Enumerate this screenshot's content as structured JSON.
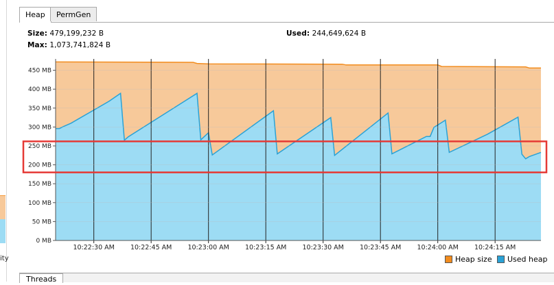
{
  "left_panel": {
    "clipped_text": "ity"
  },
  "tabs": [
    {
      "label": "Heap",
      "active": true
    },
    {
      "label": "PermGen",
      "active": false
    }
  ],
  "info": {
    "size_label": "Size:",
    "size_value": "479,199,232 B",
    "max_label": "Max:",
    "max_value": "1,073,741,824 B",
    "used_label": "Used:",
    "used_value": "244,649,624 B"
  },
  "legend": [
    {
      "label": "Heap size",
      "color": "#f28c1e"
    },
    {
      "label": "Used heap",
      "color": "#2aa2d6"
    }
  ],
  "colors": {
    "heap_fill": "#f7c99a",
    "heap_line": "#f28c1e",
    "used_fill": "#9ddcf4",
    "used_line": "#2aa2d6",
    "highlight": "#e53935",
    "grid": "#222222"
  },
  "bottom_tab": {
    "label": "Threads"
  },
  "chart_data": {
    "type": "area",
    "ylim": [
      0,
      480
    ],
    "y_unit": "MB",
    "y_ticks": [
      "0 MB",
      "50 MB",
      "100 MB",
      "150 MB",
      "200 MB",
      "250 MB",
      "300 MB",
      "350 MB",
      "400 MB",
      "450 MB"
    ],
    "y_tick_values": [
      0,
      50,
      100,
      150,
      200,
      250,
      300,
      350,
      400,
      450
    ],
    "x_ticks": [
      "10:22:30 AM",
      "10:22:45 AM",
      "10:23:00 AM",
      "10:23:15 AM",
      "10:23:30 AM",
      "10:23:45 AM",
      "10:24:00 AM",
      "10:24:15 AM"
    ],
    "x_tick_times": [
      "10:22:30",
      "10:22:45",
      "10:23:00",
      "10:23:15",
      "10:23:30",
      "10:23:45",
      "10:24:00",
      "10:24:15"
    ],
    "x_range": [
      "10:22:20",
      "10:24:27"
    ],
    "grid": true,
    "legend_position": "bottom-right",
    "highlight_band": [
      180,
      262
    ],
    "series": [
      {
        "name": "Heap size",
        "points": [
          [
            "10:22:20",
            472
          ],
          [
            "10:22:56",
            471
          ],
          [
            "10:22:57",
            468
          ],
          [
            "10:23:00",
            467
          ],
          [
            "10:23:35",
            466
          ],
          [
            "10:23:36",
            464
          ],
          [
            "10:24:00",
            464
          ],
          [
            "10:24:01",
            460
          ],
          [
            "10:24:23",
            459
          ],
          [
            "10:24:24",
            456
          ],
          [
            "10:24:27",
            456
          ]
        ]
      },
      {
        "name": "Used heap",
        "points": [
          [
            "10:22:20",
            296
          ],
          [
            "10:22:21",
            296
          ],
          [
            "10:22:22",
            301
          ],
          [
            "10:22:24",
            310
          ],
          [
            "10:22:34",
            368
          ],
          [
            "10:22:37",
            389
          ],
          [
            "10:22:38",
            265
          ],
          [
            "10:22:39",
            274
          ],
          [
            "10:22:57",
            389
          ],
          [
            "10:22:58",
            266
          ],
          [
            "10:23:00",
            285
          ],
          [
            "10:23:01",
            226
          ],
          [
            "10:23:17",
            343
          ],
          [
            "10:23:18",
            229
          ],
          [
            "10:23:32",
            325
          ],
          [
            "10:23:33",
            225
          ],
          [
            "10:23:47",
            337
          ],
          [
            "10:23:48",
            229
          ],
          [
            "10:23:57",
            275
          ],
          [
            "10:23:58",
            275
          ],
          [
            "10:23:59",
            299
          ],
          [
            "10:24:02",
            318
          ],
          [
            "10:24:03",
            233
          ],
          [
            "10:24:13",
            281
          ],
          [
            "10:24:21",
            326
          ],
          [
            "10:24:22",
            228
          ],
          [
            "10:24:23",
            216
          ],
          [
            "10:24:24",
            222
          ],
          [
            "10:24:27",
            233
          ]
        ]
      }
    ]
  }
}
